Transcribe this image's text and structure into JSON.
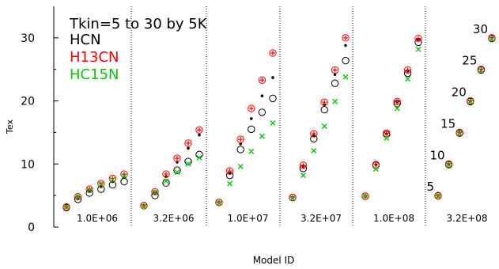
{
  "chart_data": {
    "type": "scatter",
    "title": "",
    "xlabel": "Model ID",
    "ylabel": "Tex",
    "ylim": [
      0,
      35
    ],
    "yticks": [
      0,
      10,
      20,
      30
    ],
    "grid": false,
    "legend_position": "top-left",
    "annotation_lines": [
      "Tkin=5 to 30 by 5K"
    ],
    "legend": [
      {
        "label": "HCN",
        "color": "#000000"
      },
      {
        "label": "H13CN",
        "color": "#ff0000"
      },
      {
        "label": "HC15N",
        "color": "#00cc00"
      }
    ],
    "tkin": [
      5,
      10,
      15,
      20,
      25,
      30
    ],
    "groups": [
      {
        "label": "1.0E+06",
        "series": {
          "HCN_open": [
            3.1,
            4.4,
            5.4,
            6.0,
            6.7,
            7.2
          ],
          "HCN_filled": [
            3.2,
            4.6,
            5.7,
            6.4,
            7.2,
            7.9
          ],
          "H13CN": [
            3.2,
            4.8,
            6.0,
            6.9,
            7.7,
            8.4
          ],
          "HC15N": [
            3.2,
            4.8,
            5.9,
            6.8,
            7.5,
            8.1
          ]
        }
      },
      {
        "label": "3.2E+06",
        "series": {
          "HCN_open": [
            3.4,
            5.0,
            7.0,
            9.0,
            10.4,
            11.5
          ],
          "HCN_filled": [
            3.4,
            5.4,
            8.0,
            10.3,
            12.5,
            14.6
          ],
          "H13CN": [
            3.4,
            5.6,
            8.4,
            10.9,
            13.3,
            15.4
          ],
          "HC15N": [
            3.3,
            5.5,
            7.3,
            8.7,
            10.0,
            11.0
          ]
        }
      },
      {
        "label": "1.0E+07",
        "series": {
          "HCN_open": [
            3.9,
            8.2,
            12.3,
            15.5,
            18.2,
            20.4
          ],
          "HCN_filled": [
            3.9,
            8.5,
            13.2,
            17.2,
            20.8,
            23.7
          ],
          "H13CN": [
            3.9,
            8.9,
            13.9,
            18.8,
            23.3,
            27.6
          ],
          "HC15N": [
            3.8,
            6.9,
            9.6,
            12.0,
            14.4,
            16.5
          ]
        }
      },
      {
        "label": "3.2E+07",
        "series": {
          "HCN_open": [
            4.7,
            9.3,
            14.0,
            18.6,
            22.8,
            26.4
          ],
          "HCN_filled": [
            4.7,
            9.6,
            14.5,
            19.4,
            24.2,
            28.8
          ],
          "H13CN": [
            4.7,
            9.8,
            14.8,
            19.8,
            24.9,
            30.0
          ],
          "HC15N": [
            4.6,
            8.2,
            12.1,
            16.0,
            19.9,
            23.8
          ]
        }
      },
      {
        "label": "1.0E+08",
        "series": {
          "HCN_open": [
            4.9,
            9.8,
            14.7,
            19.6,
            24.4,
            29.3
          ],
          "HCN_filled": [
            4.9,
            9.9,
            14.8,
            19.8,
            24.7,
            29.7
          ],
          "H13CN": [
            4.9,
            9.9,
            14.9,
            19.9,
            24.9,
            29.9
          ],
          "HC15N": [
            4.9,
            9.2,
            14.1,
            18.8,
            23.5,
            28.2
          ]
        }
      },
      {
        "label": "3.2E+08",
        "point_labels": [
          "5",
          "10",
          "15",
          "20",
          "25",
          "30"
        ],
        "series": {
          "HCN_open": [
            4.95,
            9.9,
            14.9,
            19.9,
            24.9,
            29.9
          ],
          "HCN_filled": [
            4.95,
            9.95,
            14.95,
            19.95,
            24.95,
            29.95
          ],
          "H13CN": [
            5.0,
            10.0,
            15.0,
            20.0,
            25.0,
            30.0
          ],
          "HC15N": [
            4.95,
            9.9,
            14.9,
            19.9,
            24.8,
            29.8
          ]
        }
      }
    ]
  }
}
